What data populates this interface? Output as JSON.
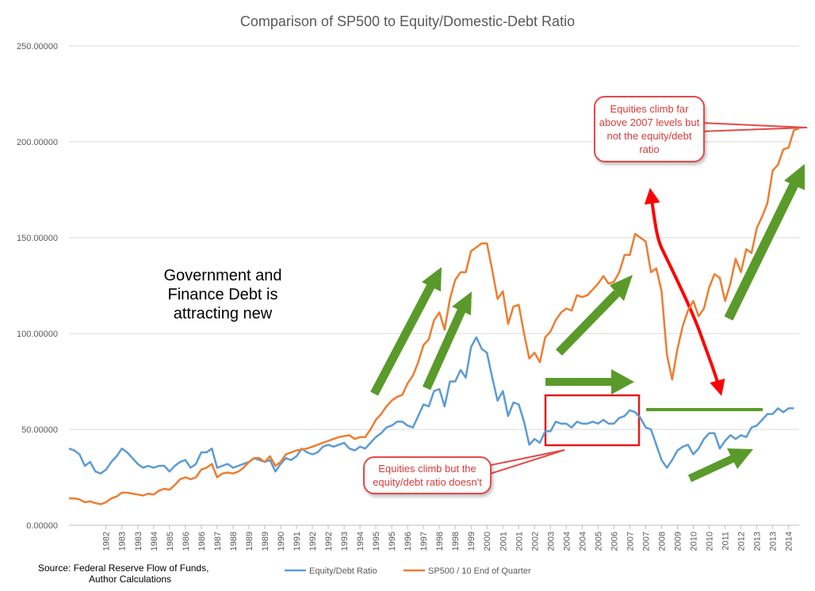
{
  "chart_data": {
    "type": "line",
    "title": "Comparison of SP500 to Equity/Domestic-Debt Ratio",
    "xlabel": "",
    "ylabel": "",
    "ylim": [
      0,
      250
    ],
    "y_tick_labels": [
      "0.00000",
      "50.00000",
      "100.00000",
      "150.00000",
      "200.00000",
      "250.00000"
    ],
    "y_tick_values": [
      0,
      50,
      100,
      150,
      200,
      250
    ],
    "x_range": [
      1980.25,
      2014.75
    ],
    "x_tick_labels": [
      "1982",
      "1983",
      "1983",
      "1984",
      "1985",
      "1986",
      "1986",
      "1987",
      "1988",
      "1989",
      "1989",
      "1990",
      "1991",
      "1992",
      "1992",
      "1993",
      "1994",
      "1995",
      "1995",
      "1996",
      "1997",
      "1998",
      "1998",
      "1999",
      "2000",
      "2001",
      "2001",
      "2002",
      "2003",
      "2004",
      "2004",
      "2005",
      "2006",
      "2007",
      "2007",
      "2008",
      "2009",
      "2010",
      "2010",
      "2011",
      "2012",
      "2013",
      "2013",
      "2014"
    ],
    "x_tick_values": [
      1982.0,
      1982.75,
      1983.5,
      1984.25,
      1985.0,
      1985.75,
      1986.5,
      1987.25,
      1988.0,
      1988.75,
      1989.5,
      1990.25,
      1991.0,
      1991.75,
      1992.5,
      1993.25,
      1994.0,
      1994.75,
      1995.5,
      1996.25,
      1997.0,
      1997.75,
      1998.5,
      1999.25,
      2000.0,
      2000.75,
      2001.5,
      2002.25,
      2003.0,
      2003.75,
      2004.5,
      2005.25,
      2006.0,
      2006.75,
      2007.5,
      2008.25,
      2009.0,
      2009.75,
      2010.5,
      2011.25,
      2012.0,
      2012.75,
      2013.5,
      2014.25
    ],
    "series": [
      {
        "name": "Equity/Debt Ratio",
        "color": "#5b9bd5",
        "points": [
          [
            1980.25,
            40
          ],
          [
            1980.5,
            39
          ],
          [
            1980.75,
            37
          ],
          [
            1981.0,
            31
          ],
          [
            1981.25,
            33
          ],
          [
            1981.5,
            28
          ],
          [
            1981.75,
            27
          ],
          [
            1982.0,
            29
          ],
          [
            1982.25,
            33
          ],
          [
            1982.5,
            36
          ],
          [
            1982.75,
            40
          ],
          [
            1983.0,
            38
          ],
          [
            1983.25,
            35
          ],
          [
            1983.5,
            32
          ],
          [
            1983.75,
            30
          ],
          [
            1984.0,
            31
          ],
          [
            1984.25,
            30
          ],
          [
            1984.5,
            31
          ],
          [
            1984.75,
            31
          ],
          [
            1985.0,
            28
          ],
          [
            1985.25,
            31
          ],
          [
            1985.5,
            33
          ],
          [
            1985.75,
            34
          ],
          [
            1986.0,
            30
          ],
          [
            1986.25,
            32
          ],
          [
            1986.5,
            38
          ],
          [
            1986.75,
            38
          ],
          [
            1987.0,
            40
          ],
          [
            1987.25,
            30
          ],
          [
            1987.5,
            31
          ],
          [
            1987.75,
            32
          ],
          [
            1988.0,
            30
          ],
          [
            1988.25,
            31
          ],
          [
            1988.5,
            32
          ],
          [
            1988.75,
            33
          ],
          [
            1989.0,
            35
          ],
          [
            1989.25,
            34
          ],
          [
            1989.5,
            33
          ],
          [
            1989.75,
            34
          ],
          [
            1990.0,
            28
          ],
          [
            1990.25,
            32
          ],
          [
            1990.5,
            35
          ],
          [
            1990.75,
            34
          ],
          [
            1991.0,
            36
          ],
          [
            1991.25,
            40
          ],
          [
            1991.5,
            38
          ],
          [
            1991.75,
            37
          ],
          [
            1992.0,
            38
          ],
          [
            1992.25,
            41
          ],
          [
            1992.5,
            42
          ],
          [
            1992.75,
            41
          ],
          [
            1993.0,
            42
          ],
          [
            1993.25,
            43
          ],
          [
            1993.5,
            40
          ],
          [
            1993.75,
            39
          ],
          [
            1994.0,
            41
          ],
          [
            1994.25,
            40
          ],
          [
            1994.5,
            43
          ],
          [
            1994.75,
            46
          ],
          [
            1995.0,
            48
          ],
          [
            1995.25,
            51
          ],
          [
            1995.5,
            52
          ],
          [
            1995.75,
            54
          ],
          [
            1996.0,
            54
          ],
          [
            1996.25,
            52
          ],
          [
            1996.5,
            51
          ],
          [
            1996.75,
            57
          ],
          [
            1997.0,
            63
          ],
          [
            1997.25,
            62
          ],
          [
            1997.5,
            70
          ],
          [
            1997.75,
            71
          ],
          [
            1998.0,
            62
          ],
          [
            1998.25,
            75
          ],
          [
            1998.5,
            75
          ],
          [
            1998.75,
            81
          ],
          [
            1999.0,
            77
          ],
          [
            1999.25,
            93
          ],
          [
            1999.5,
            98
          ],
          [
            1999.75,
            92
          ],
          [
            2000.0,
            90
          ],
          [
            2000.25,
            77
          ],
          [
            2000.5,
            65
          ],
          [
            2000.75,
            70
          ],
          [
            2001.0,
            57
          ],
          [
            2001.25,
            64
          ],
          [
            2001.5,
            63
          ],
          [
            2001.75,
            54
          ],
          [
            2002.0,
            42
          ],
          [
            2002.25,
            45
          ],
          [
            2002.5,
            43
          ],
          [
            2002.75,
            49
          ],
          [
            2003.0,
            49
          ],
          [
            2003.25,
            54
          ],
          [
            2003.5,
            53
          ],
          [
            2003.75,
            53
          ],
          [
            2004.0,
            51
          ],
          [
            2004.25,
            54
          ],
          [
            2004.5,
            53
          ],
          [
            2004.75,
            53
          ],
          [
            2005.0,
            54
          ],
          [
            2005.25,
            53
          ],
          [
            2005.5,
            55
          ],
          [
            2005.75,
            53
          ],
          [
            2006.0,
            53
          ],
          [
            2006.25,
            56
          ],
          [
            2006.5,
            57
          ],
          [
            2006.75,
            60
          ],
          [
            2007.0,
            59
          ],
          [
            2007.25,
            56
          ],
          [
            2007.5,
            51
          ],
          [
            2007.75,
            50
          ],
          [
            2008.0,
            42
          ],
          [
            2008.25,
            34
          ],
          [
            2008.5,
            30
          ],
          [
            2008.75,
            34
          ],
          [
            2009.0,
            39
          ],
          [
            2009.25,
            41
          ],
          [
            2009.5,
            42
          ],
          [
            2009.75,
            37
          ],
          [
            2010.0,
            40
          ],
          [
            2010.25,
            45
          ],
          [
            2010.5,
            48
          ],
          [
            2010.75,
            48
          ],
          [
            2011.0,
            40
          ],
          [
            2011.25,
            44
          ],
          [
            2011.5,
            47
          ],
          [
            2011.75,
            45
          ],
          [
            2012.0,
            47
          ],
          [
            2012.25,
            46
          ],
          [
            2012.5,
            51
          ],
          [
            2012.75,
            52
          ],
          [
            2013.0,
            55
          ],
          [
            2013.25,
            58
          ],
          [
            2013.5,
            58
          ],
          [
            2013.75,
            61
          ],
          [
            2014.0,
            59
          ],
          [
            2014.25,
            61
          ],
          [
            2014.5,
            61
          ]
        ]
      },
      {
        "name": "SP500 / 10 End of Quarter",
        "color": "#ed7d31",
        "points": [
          [
            1980.25,
            14
          ],
          [
            1980.5,
            14
          ],
          [
            1980.75,
            13.5
          ],
          [
            1981.0,
            12
          ],
          [
            1981.25,
            12.5
          ],
          [
            1981.5,
            11.5
          ],
          [
            1981.75,
            11
          ],
          [
            1982.0,
            12
          ],
          [
            1982.25,
            14
          ],
          [
            1982.5,
            15
          ],
          [
            1982.75,
            17
          ],
          [
            1983.0,
            17
          ],
          [
            1983.25,
            16.5
          ],
          [
            1983.5,
            16
          ],
          [
            1983.75,
            15.5
          ],
          [
            1984.0,
            16.5
          ],
          [
            1984.25,
            16
          ],
          [
            1984.5,
            18
          ],
          [
            1984.75,
            19
          ],
          [
            1985.0,
            18.5
          ],
          [
            1985.25,
            21
          ],
          [
            1985.5,
            24
          ],
          [
            1985.75,
            25
          ],
          [
            1986.0,
            24
          ],
          [
            1986.25,
            25
          ],
          [
            1986.5,
            29
          ],
          [
            1986.75,
            30
          ],
          [
            1987.0,
            32
          ],
          [
            1987.25,
            25
          ],
          [
            1987.5,
            27
          ],
          [
            1987.75,
            27.5
          ],
          [
            1988.0,
            27
          ],
          [
            1988.25,
            28
          ],
          [
            1988.5,
            30
          ],
          [
            1988.75,
            33
          ],
          [
            1989.0,
            35
          ],
          [
            1989.25,
            35
          ],
          [
            1989.5,
            33
          ],
          [
            1989.75,
            36
          ],
          [
            1990.0,
            31
          ],
          [
            1990.25,
            33
          ],
          [
            1990.5,
            37
          ],
          [
            1990.75,
            38
          ],
          [
            1991.0,
            39
          ],
          [
            1991.25,
            39.5
          ],
          [
            1991.5,
            40
          ],
          [
            1991.75,
            41
          ],
          [
            1992.0,
            42
          ],
          [
            1992.25,
            43
          ],
          [
            1992.5,
            44
          ],
          [
            1992.75,
            45
          ],
          [
            1993.0,
            46
          ],
          [
            1993.25,
            46.5
          ],
          [
            1993.5,
            47
          ],
          [
            1993.75,
            45
          ],
          [
            1994.0,
            46
          ],
          [
            1994.25,
            46
          ],
          [
            1994.5,
            50
          ],
          [
            1994.75,
            55
          ],
          [
            1995.0,
            58
          ],
          [
            1995.25,
            62
          ],
          [
            1995.5,
            65
          ],
          [
            1995.75,
            67
          ],
          [
            1996.0,
            68
          ],
          [
            1996.25,
            74
          ],
          [
            1996.5,
            78
          ],
          [
            1996.75,
            85
          ],
          [
            1997.0,
            94
          ],
          [
            1997.25,
            97
          ],
          [
            1997.5,
            107
          ],
          [
            1997.75,
            111
          ],
          [
            1998.0,
            102
          ],
          [
            1998.25,
            118
          ],
          [
            1998.5,
            128
          ],
          [
            1998.75,
            132
          ],
          [
            1999.0,
            132
          ],
          [
            1999.25,
            143
          ],
          [
            1999.5,
            145
          ],
          [
            1999.75,
            147
          ],
          [
            2000.0,
            147
          ],
          [
            2000.25,
            133
          ],
          [
            2000.5,
            118
          ],
          [
            2000.75,
            122
          ],
          [
            2001.0,
            105
          ],
          [
            2001.25,
            114
          ],
          [
            2001.5,
            115
          ],
          [
            2001.75,
            100
          ],
          [
            2002.0,
            87
          ],
          [
            2002.25,
            90
          ],
          [
            2002.5,
            85
          ],
          [
            2002.75,
            98
          ],
          [
            2003.0,
            101
          ],
          [
            2003.25,
            107
          ],
          [
            2003.5,
            111
          ],
          [
            2003.75,
            113
          ],
          [
            2004.0,
            112
          ],
          [
            2004.25,
            120
          ],
          [
            2004.5,
            119
          ],
          [
            2004.75,
            120
          ],
          [
            2005.0,
            123
          ],
          [
            2005.25,
            126
          ],
          [
            2005.5,
            130
          ],
          [
            2005.75,
            126
          ],
          [
            2006.0,
            127
          ],
          [
            2006.25,
            132
          ],
          [
            2006.5,
            141
          ],
          [
            2006.75,
            141
          ],
          [
            2007.0,
            152
          ],
          [
            2007.25,
            150
          ],
          [
            2007.5,
            148
          ],
          [
            2007.75,
            132
          ],
          [
            2008.0,
            134
          ],
          [
            2008.25,
            122
          ],
          [
            2008.5,
            89
          ],
          [
            2008.75,
            76
          ],
          [
            2009.0,
            92
          ],
          [
            2009.25,
            104
          ],
          [
            2009.5,
            112
          ],
          [
            2009.75,
            117
          ],
          [
            2010.0,
            109
          ],
          [
            2010.25,
            113
          ],
          [
            2010.5,
            124
          ],
          [
            2010.75,
            131
          ],
          [
            2011.0,
            129
          ],
          [
            2011.25,
            117
          ],
          [
            2011.5,
            126
          ],
          [
            2011.75,
            139
          ],
          [
            2012.0,
            132
          ],
          [
            2012.25,
            144
          ],
          [
            2012.5,
            142
          ],
          [
            2012.75,
            155
          ],
          [
            2013.0,
            161
          ],
          [
            2013.25,
            168
          ],
          [
            2013.5,
            185
          ],
          [
            2013.75,
            188
          ],
          [
            2014.0,
            196
          ],
          [
            2014.25,
            197
          ],
          [
            2014.5,
            206
          ],
          [
            2014.75,
            207
          ]
        ]
      }
    ],
    "legend": [
      "Equity/Debt Ratio",
      "SP500 / 10 End of Quarter"
    ],
    "legend_position": "bottom",
    "grid": true
  },
  "source_line1": "Source: Federal Reserve Flow of Funds,",
  "source_line2": "Author Calculations",
  "gov_note_line1": "Government and",
  "gov_note_line2": "Finance Debt is",
  "gov_note_line3": "attracting new",
  "callout_top": "Equities climb far above 2007 levels but not the equity/debt ratio",
  "callout_bottom": "Equities climb but the equity/debt ratio doesn't",
  "colors": {
    "grid": "#d9d9d9",
    "axis": "#bfbfbf",
    "arrow_green": "#5a9a2a",
    "arrow_red": "#ff0000",
    "box_red": "#e31a1c",
    "callout_border": "#e34a4a"
  }
}
